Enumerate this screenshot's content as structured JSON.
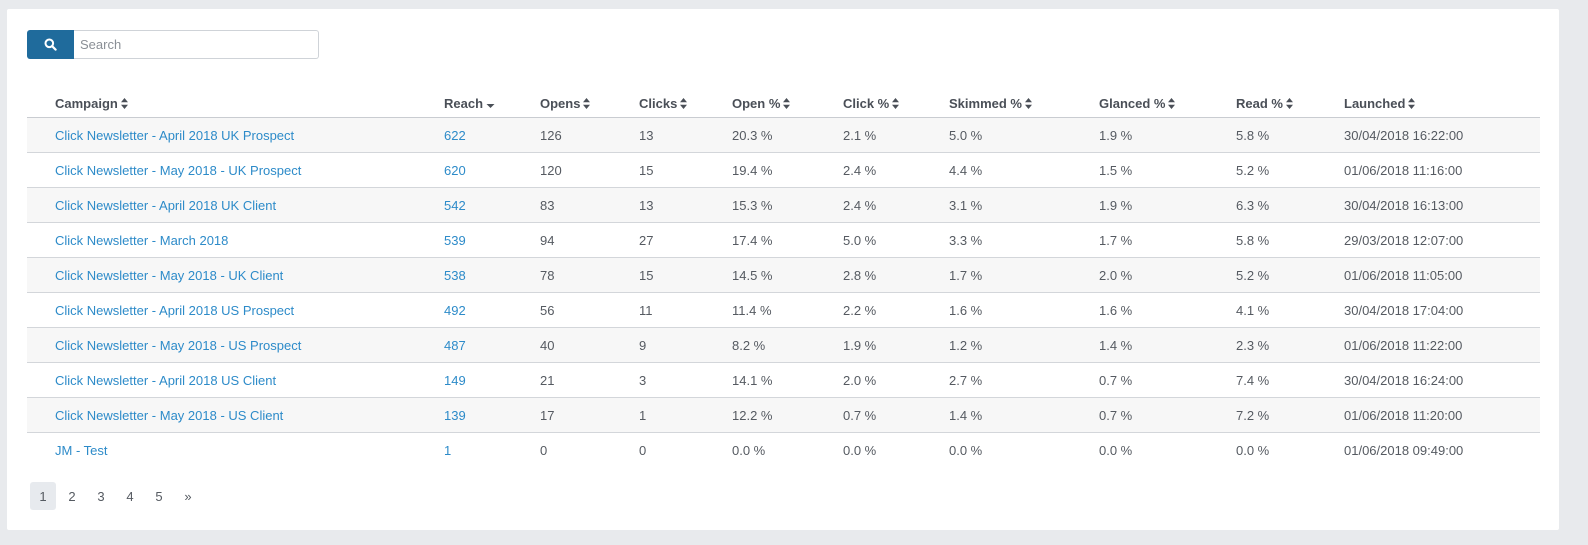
{
  "search": {
    "placeholder": "Search",
    "value": ""
  },
  "table": {
    "columns": [
      "Campaign",
      "Reach",
      "Opens",
      "Clicks",
      "Open %",
      "Click %",
      "Skimmed %",
      "Glanced %",
      "Read %",
      "Launched"
    ],
    "sorted_column": "Reach",
    "sort_direction": "descending",
    "rows": [
      {
        "campaign": "Click Newsletter - April 2018 UK Prospect",
        "reach": "622",
        "opens": "126",
        "clicks": "13",
        "open_pct": "20.3 %",
        "click_pct": "2.1 %",
        "skimmed_pct": "5.0 %",
        "glanced_pct": "1.9 %",
        "read_pct": "5.8 %",
        "launched": "30/04/2018 16:22:00"
      },
      {
        "campaign": "Click Newsletter - May 2018 - UK Prospect",
        "reach": "620",
        "opens": "120",
        "clicks": "15",
        "open_pct": "19.4 %",
        "click_pct": "2.4 %",
        "skimmed_pct": "4.4 %",
        "glanced_pct": "1.5 %",
        "read_pct": "5.2 %",
        "launched": "01/06/2018 11:16:00"
      },
      {
        "campaign": "Click Newsletter - April 2018 UK Client",
        "reach": "542",
        "opens": "83",
        "clicks": "13",
        "open_pct": "15.3 %",
        "click_pct": "2.4 %",
        "skimmed_pct": "3.1 %",
        "glanced_pct": "1.9 %",
        "read_pct": "6.3 %",
        "launched": "30/04/2018 16:13:00"
      },
      {
        "campaign": "Click Newsletter - March 2018",
        "reach": "539",
        "opens": "94",
        "clicks": "27",
        "open_pct": "17.4 %",
        "click_pct": "5.0 %",
        "skimmed_pct": "3.3 %",
        "glanced_pct": "1.7 %",
        "read_pct": "5.8 %",
        "launched": "29/03/2018 12:07:00"
      },
      {
        "campaign": "Click Newsletter - May 2018 - UK Client",
        "reach": "538",
        "opens": "78",
        "clicks": "15",
        "open_pct": "14.5 %",
        "click_pct": "2.8 %",
        "skimmed_pct": "1.7 %",
        "glanced_pct": "2.0 %",
        "read_pct": "5.2 %",
        "launched": "01/06/2018 11:05:00"
      },
      {
        "campaign": "Click Newsletter - April 2018 US Prospect",
        "reach": "492",
        "opens": "56",
        "clicks": "11",
        "open_pct": "11.4 %",
        "click_pct": "2.2 %",
        "skimmed_pct": "1.6 %",
        "glanced_pct": "1.6 %",
        "read_pct": "4.1 %",
        "launched": "30/04/2018 17:04:00"
      },
      {
        "campaign": "Click Newsletter - May 2018 - US Prospect",
        "reach": "487",
        "opens": "40",
        "clicks": "9",
        "open_pct": "8.2 %",
        "click_pct": "1.9 %",
        "skimmed_pct": "1.2 %",
        "glanced_pct": "1.4 %",
        "read_pct": "2.3 %",
        "launched": "01/06/2018 11:22:00"
      },
      {
        "campaign": "Click Newsletter - April 2018 US Client",
        "reach": "149",
        "opens": "21",
        "clicks": "3",
        "open_pct": "14.1 %",
        "click_pct": "2.0 %",
        "skimmed_pct": "2.7 %",
        "glanced_pct": "0.7 %",
        "read_pct": "7.4 %",
        "launched": "30/04/2018 16:24:00"
      },
      {
        "campaign": "Click Newsletter - May 2018 - US Client",
        "reach": "139",
        "opens": "17",
        "clicks": "1",
        "open_pct": "12.2 %",
        "click_pct": "0.7 %",
        "skimmed_pct": "1.4 %",
        "glanced_pct": "0.7 %",
        "read_pct": "7.2 %",
        "launched": "01/06/2018 11:20:00"
      },
      {
        "campaign": "JM - Test",
        "reach": "1",
        "opens": "0",
        "clicks": "0",
        "open_pct": "0.0 %",
        "click_pct": "0.0 %",
        "skimmed_pct": "0.0 %",
        "glanced_pct": "0.0 %",
        "read_pct": "0.0 %",
        "launched": "01/06/2018 09:49:00"
      }
    ]
  },
  "pagination": {
    "pages": [
      "1",
      "2",
      "3",
      "4",
      "5"
    ],
    "active_page": "1",
    "next_label": "»"
  },
  "colors": {
    "accent": "#1f6b9c",
    "link": "#2d8bc9",
    "stripe": "#f7f7f7",
    "page_background": "#e8eaed"
  }
}
